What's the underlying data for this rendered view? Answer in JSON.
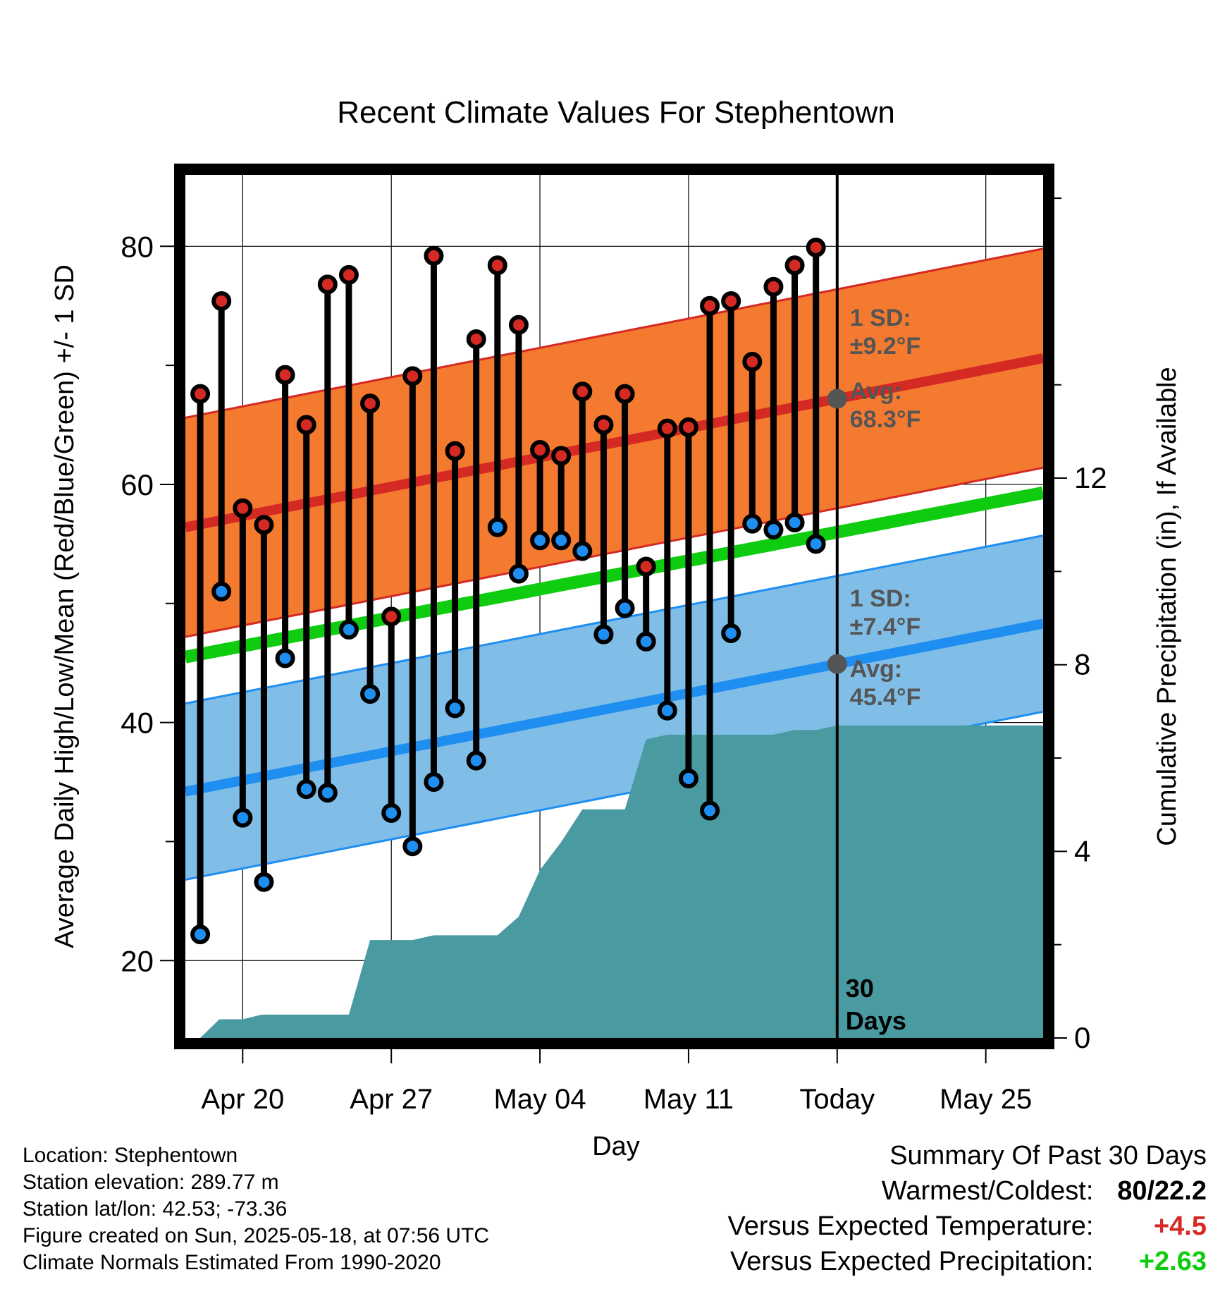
{
  "chart_data": {
    "type": "line",
    "title": "Recent Climate Values For Stephentown",
    "xlabel": "Day",
    "ylabel": "Average Daily High/Low/Mean (Red/Blue/Green) +/- 1 SD",
    "y2label": "Cumulative Precipitation (in), If Available",
    "x_tick_labels": [
      "Apr 20",
      "Apr 27",
      "May 04",
      "May 11",
      "Today",
      "May 25"
    ],
    "x_tick_days": [
      20,
      27,
      34,
      41,
      48,
      55
    ],
    "xlim_days": [
      17.3,
      57.7
    ],
    "today_day": 48,
    "ylim": [
      13.5,
      86
    ],
    "y_ticks": [
      20,
      40,
      60,
      80
    ],
    "y2lim": [
      0,
      18.5
    ],
    "y2_ticks": [
      0,
      4,
      8,
      12
    ],
    "grid": true,
    "observed": {
      "days": [
        18,
        19,
        20,
        21,
        22,
        23,
        24,
        25,
        26,
        27,
        28,
        29,
        30,
        31,
        32,
        33,
        34,
        35,
        36,
        37,
        38,
        39,
        40,
        41,
        42,
        43,
        44,
        45,
        46,
        47
      ],
      "high": [
        67.6,
        75.4,
        58.0,
        56.6,
        69.2,
        65.0,
        76.8,
        77.6,
        66.8,
        48.9,
        69.1,
        79.2,
        62.8,
        72.2,
        78.4,
        73.4,
        62.9,
        62.4,
        67.8,
        65.0,
        67.6,
        53.1,
        64.7,
        64.8,
        75.0,
        75.4,
        70.3,
        76.6,
        78.4,
        79.9
      ],
      "low": [
        22.2,
        51.0,
        32.0,
        26.6,
        45.4,
        34.4,
        34.1,
        47.8,
        42.4,
        32.4,
        29.6,
        35.0,
        41.2,
        36.8,
        56.4,
        52.5,
        55.3,
        55.3,
        54.4,
        47.4,
        49.6,
        46.8,
        41.0,
        35.3,
        32.6,
        47.5,
        56.7,
        56.2,
        56.8,
        55.0
      ]
    },
    "normals": {
      "days": [
        17.3,
        57.7
      ],
      "avg_high": [
        56.4,
        70.6
      ],
      "avg_low": [
        34.2,
        48.3
      ],
      "avg_mean": [
        45.5,
        59.3
      ],
      "high_sd": 9.2,
      "low_sd": 7.4
    },
    "precip_cumulative": {
      "days": [
        18.0,
        18.9,
        20.0,
        20.9,
        22.0,
        23.0,
        24.0,
        25.0,
        26.0,
        27.0,
        28.0,
        29.0,
        30.0,
        31.0,
        32.0,
        33.0,
        34.0,
        35.0,
        36.0,
        37.0,
        38.0,
        39.0,
        40.0,
        41.0,
        42.0,
        43.0,
        44.0,
        45.0,
        46.0,
        47.0,
        48.0,
        57.7
      ],
      "values": [
        0.0,
        0.4,
        0.4,
        0.5,
        0.5,
        0.5,
        0.5,
        0.5,
        2.1,
        2.1,
        2.1,
        2.2,
        2.2,
        2.2,
        2.2,
        2.6,
        3.6,
        4.2,
        4.9,
        4.9,
        4.9,
        6.4,
        6.5,
        6.5,
        6.5,
        6.5,
        6.5,
        6.5,
        6.6,
        6.6,
        6.7,
        6.7
      ]
    },
    "annotations": {
      "high_sd_label": "1 SD:",
      "high_sd_value": "±9.2°F",
      "high_avg_label": "Avg:",
      "high_avg_value": "68.3°F",
      "low_sd_label": "1 SD:",
      "low_sd_value": "±7.4°F",
      "low_avg_label": "Avg:",
      "low_avg_value": "45.4°F",
      "window_number": "30",
      "window_unit": "Days"
    },
    "colors": {
      "high_band": "#f47a30",
      "high_line": "#d42a23",
      "low_band": "#80bee7",
      "low_line": "#1f8ef1",
      "mean_line": "#10cc10",
      "precip": "#4a9aa2",
      "high_dot": "#d42a23",
      "low_dot": "#1f8ef1",
      "annotation": "#555555"
    }
  },
  "info": {
    "location": "Location: Stephentown",
    "elevation": "Station elevation: 289.77 m",
    "latlon": "Station lat/lon: 42.53; -73.36",
    "created": "Figure created on Sun, 2025-05-18, at 07:56 UTC",
    "normals": "Climate Normals Estimated From 1990-2020"
  },
  "summary": {
    "title": "Summary Of Past 30 Days",
    "warm_cold_label": "Warmest/Coldest:",
    "warm_cold_value": "80/22.2",
    "temp_label": "Versus Expected Temperature:",
    "temp_value": "+4.5",
    "precip_label": "Versus Expected Precipitation:",
    "precip_value": "+2.63",
    "temp_color": "#d42a23",
    "precip_color": "#10cc10"
  }
}
